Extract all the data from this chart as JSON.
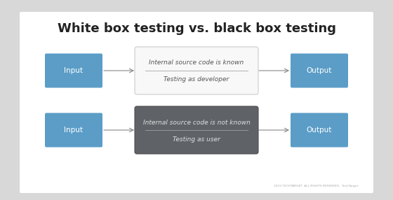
{
  "title": "White box testing vs. black box testing",
  "title_fontsize": 13,
  "title_color": "#222222",
  "title_fontweight": "bold",
  "outer_bg": "#d8d8d8",
  "inner_bg": "#ffffff",
  "row1": {
    "input_label": "Input",
    "output_label": "Output",
    "line1": "Internal source code is known",
    "line2": "Testing as developer",
    "center_bg": "#f8f8f8",
    "center_border": "#cccccc",
    "io_color": "#5b9dc7",
    "io_text_color": "#ffffff",
    "text_color": "#555555"
  },
  "row2": {
    "input_label": "Input",
    "output_label": "Output",
    "line1": "Internal source code is not known",
    "line2": "Testing as user",
    "center_bg": "#5f6368",
    "center_border": "#4a4a4a",
    "io_color": "#5b9dc7",
    "io_text_color": "#ffffff",
    "text_color": "#e0e0e0"
  },
  "footer_text": "2023 TECHTARGET. ALL RIGHTS RESERVED.",
  "footer_brand": "TechTarget",
  "arrow_color": "#888888"
}
